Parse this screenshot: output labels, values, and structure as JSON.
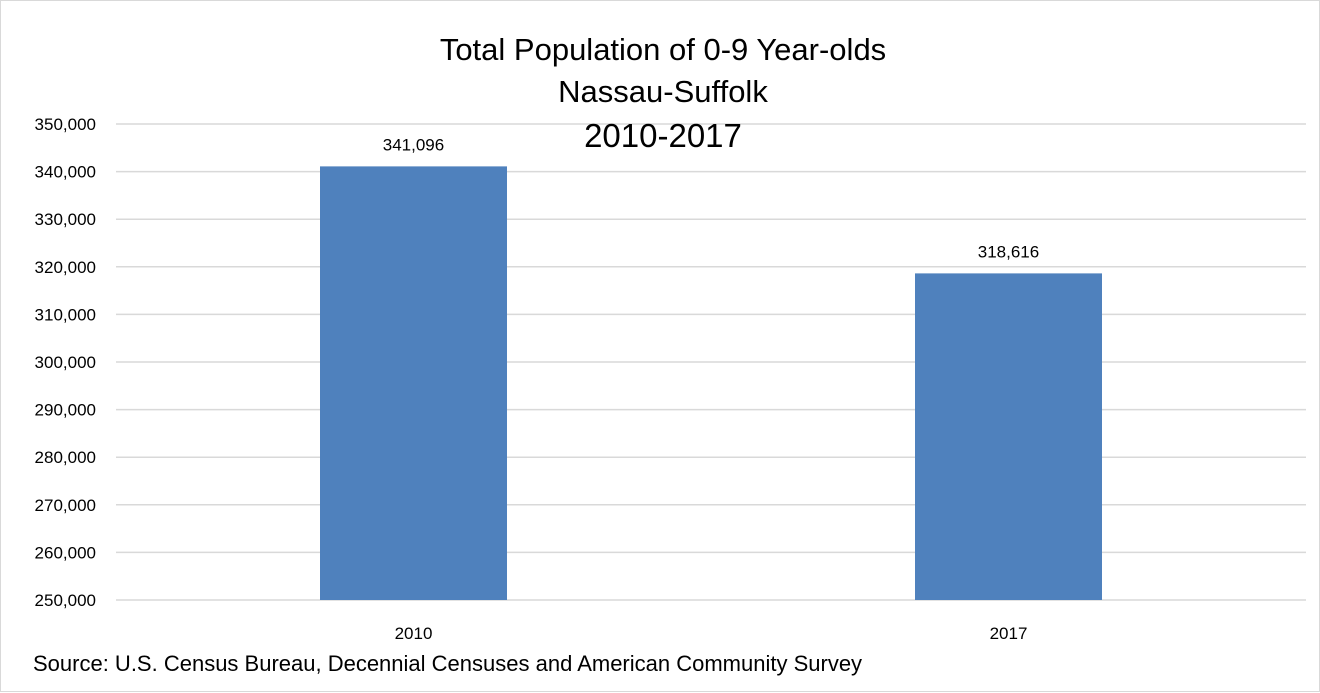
{
  "chart_data": {
    "type": "bar",
    "title": [
      "Total Population of 0-9 Year-olds",
      "Nassau-Suffolk",
      "2010-2017"
    ],
    "categories": [
      "2010",
      "2017"
    ],
    "values": [
      341096,
      318616
    ],
    "data_labels": [
      "341,096",
      "318,616"
    ],
    "ylim": [
      250000,
      350000
    ],
    "y_ticks": [
      250000,
      260000,
      270000,
      280000,
      290000,
      300000,
      310000,
      320000,
      330000,
      340000,
      350000
    ],
    "y_tick_labels": [
      "250,000",
      "260,000",
      "270,000",
      "280,000",
      "290,000",
      "300,000",
      "310,000",
      "320,000",
      "330,000",
      "340,000",
      "350,000"
    ],
    "grid": true,
    "legend": "none",
    "bar_color": "#4f81bd",
    "grid_color": "#d9d9d9"
  },
  "source": "Source: U.S. Census Bureau, Decennial Censuses and American Community Survey"
}
